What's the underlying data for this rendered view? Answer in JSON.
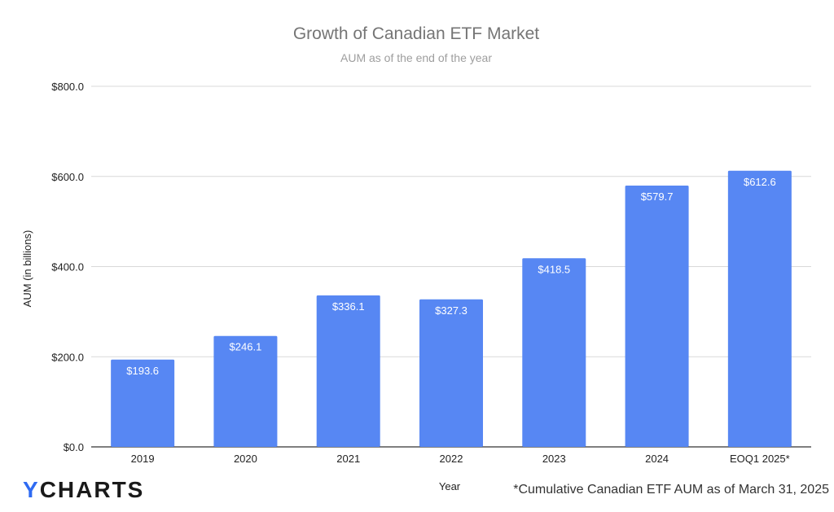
{
  "chart_data": {
    "type": "bar",
    "title": "Growth of Canadian ETF Market",
    "subtitle": "AUM as of the end of the year",
    "xlabel": "Year",
    "ylabel": "AUM (in billions)",
    "categories": [
      "2019",
      "2020",
      "2021",
      "2022",
      "2023",
      "2024",
      "EOQ1 2025*"
    ],
    "values": [
      193.6,
      246.1,
      336.1,
      327.3,
      418.5,
      579.7,
      612.6
    ],
    "data_labels": [
      "$193.6",
      "$246.1",
      "$336.1",
      "$327.3",
      "$418.5",
      "$579.7",
      "$612.6"
    ],
    "yticks": [
      0,
      200,
      400,
      600,
      800
    ],
    "ytick_labels": [
      "$0.0",
      "$200.0",
      "$400.0",
      "$600.0",
      "$800.0"
    ],
    "ylim": [
      0,
      800
    ],
    "grid": true,
    "legend": "none",
    "bar_color": "#5787f3"
  },
  "branding": {
    "logo_y": "Y",
    "logo_rest": "CHARTS"
  },
  "footnote": "*Cumulative Canadian ETF AUM as of March 31, 2025"
}
